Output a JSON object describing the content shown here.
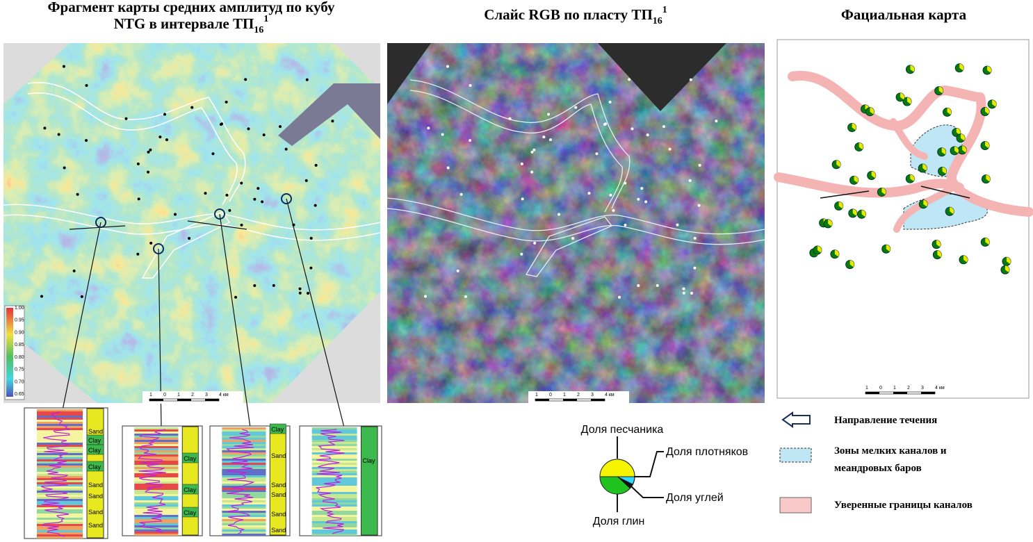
{
  "panels": [
    {
      "title_lines": [
        "Фрагмент карты средних амплитуд по кубу",
        "NTG в интервале ТП"
      ],
      "title_sub": "16",
      "title_sup": "1",
      "colorbar": [
        "1.00",
        "0.95",
        "0.90",
        "0.85",
        "0.80",
        "0.75",
        "0.70",
        "0.65"
      ],
      "scale_bar": [
        "1",
        "0",
        "1",
        "2",
        "3",
        "4 км"
      ]
    },
    {
      "title": "Слайс RGB по пласту ТП",
      "title_sub": "16",
      "title_sup": "1",
      "scale_bar": [
        "1",
        "0",
        "1",
        "2",
        "3",
        "4 км"
      ]
    },
    {
      "title": "Фациальная карта",
      "scale_bar": [
        "1",
        "0",
        "1",
        "2",
        "3",
        "4 км"
      ]
    }
  ],
  "logs": [
    {
      "labels": [
        "Sand",
        "Clay",
        "Clay",
        "Clay",
        "Sand",
        "Sand",
        "Sand",
        "Sand"
      ]
    },
    {
      "labels": [
        "Clay",
        "Clay",
        "Clay"
      ]
    },
    {
      "labels": [
        "Clay",
        "Sand",
        "Sand",
        "Sand",
        "Sand",
        "Sand"
      ]
    },
    {
      "labels": [
        "Clay"
      ]
    }
  ],
  "pie_legend": {
    "sand": "Доля песчаника",
    "dense": "Доля плотняков",
    "coal": "Доля углей",
    "clay": "Доля глин"
  },
  "legend": [
    {
      "lines": [
        "Направление течения"
      ]
    },
    {
      "lines": [
        "Зоны мелких каналов и",
        "меандровых баров"
      ]
    },
    {
      "lines": [
        "Уверенные границы каналов"
      ]
    }
  ]
}
